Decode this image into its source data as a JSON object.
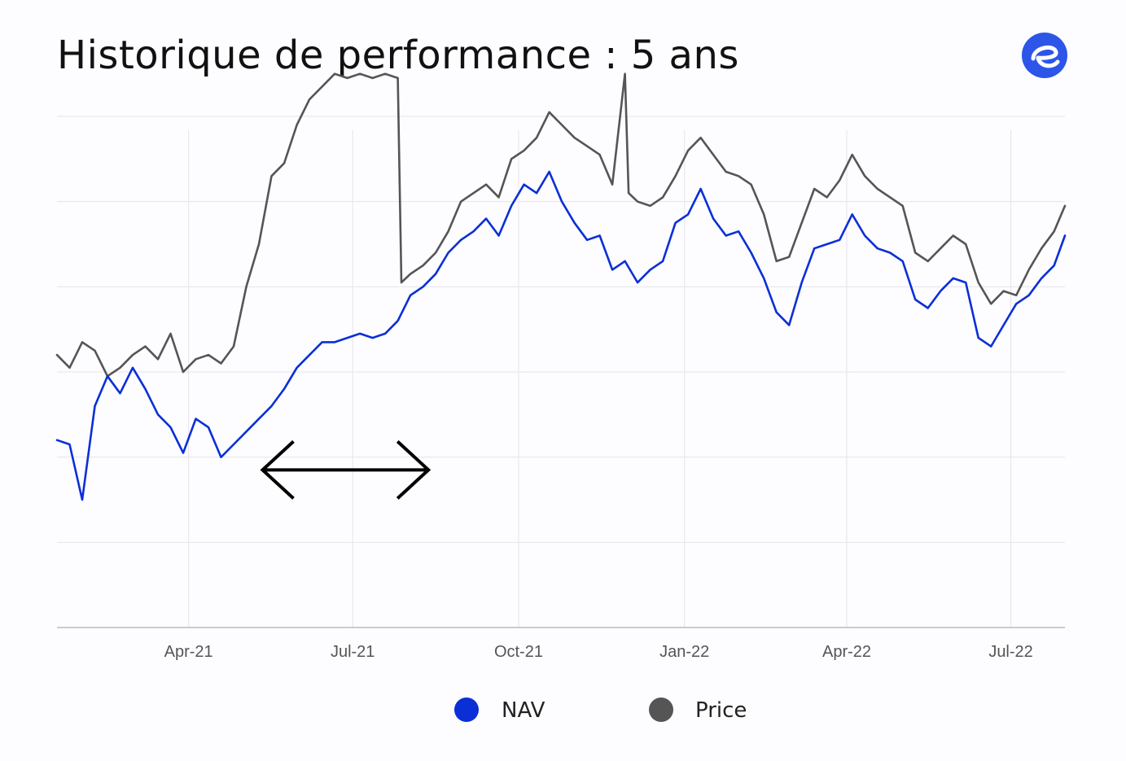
{
  "header": {
    "title": "Historique de performance : 5 ans",
    "logo_icon": "brand-e-logo",
    "logo_color": "#2d55e8"
  },
  "chart_data": {
    "type": "line",
    "x_tick_labels": [
      "Apr-21",
      "Jul-21",
      "Oct-21",
      "Jan-22",
      "Apr-22",
      "Jul-22"
    ],
    "x_range": [
      "2021-01-18",
      "2022-07-31"
    ],
    "y_range": [
      0,
      6
    ],
    "y_gridlines": [
      1,
      2,
      3,
      4,
      5,
      6
    ],
    "series": [
      {
        "name": "NAV",
        "color": "#0a2fd6",
        "points": [
          [
            "2021-01-18",
            2.2
          ],
          [
            "2021-01-25",
            2.15
          ],
          [
            "2021-02-01",
            1.5
          ],
          [
            "2021-02-08",
            2.6
          ],
          [
            "2021-02-15",
            2.95
          ],
          [
            "2021-02-22",
            2.75
          ],
          [
            "2021-03-01",
            3.05
          ],
          [
            "2021-03-08",
            2.8
          ],
          [
            "2021-03-15",
            2.5
          ],
          [
            "2021-03-22",
            2.35
          ],
          [
            "2021-03-29",
            2.05
          ],
          [
            "2021-04-05",
            2.45
          ],
          [
            "2021-04-12",
            2.35
          ],
          [
            "2021-04-19",
            2.0
          ],
          [
            "2021-04-26",
            2.15
          ],
          [
            "2021-05-03",
            2.3
          ],
          [
            "2021-05-10",
            2.45
          ],
          [
            "2021-05-17",
            2.6
          ],
          [
            "2021-05-24",
            2.8
          ],
          [
            "2021-05-31",
            3.05
          ],
          [
            "2021-06-07",
            3.2
          ],
          [
            "2021-06-14",
            3.35
          ],
          [
            "2021-06-21",
            3.35
          ],
          [
            "2021-06-28",
            3.4
          ],
          [
            "2021-07-05",
            3.45
          ],
          [
            "2021-07-12",
            3.4
          ],
          [
            "2021-07-19",
            3.45
          ],
          [
            "2021-07-26",
            3.6
          ],
          [
            "2021-08-02",
            3.9
          ],
          [
            "2021-08-09",
            4.0
          ],
          [
            "2021-08-16",
            4.15
          ],
          [
            "2021-08-23",
            4.4
          ],
          [
            "2021-08-30",
            4.55
          ],
          [
            "2021-09-06",
            4.65
          ],
          [
            "2021-09-13",
            4.8
          ],
          [
            "2021-09-20",
            4.6
          ],
          [
            "2021-09-27",
            4.95
          ],
          [
            "2021-10-04",
            5.2
          ],
          [
            "2021-10-11",
            5.1
          ],
          [
            "2021-10-18",
            5.35
          ],
          [
            "2021-10-25",
            5.0
          ],
          [
            "2021-11-01",
            4.75
          ],
          [
            "2021-11-08",
            4.55
          ],
          [
            "2021-11-15",
            4.6
          ],
          [
            "2021-11-22",
            4.2
          ],
          [
            "2021-11-29",
            4.3
          ],
          [
            "2021-12-06",
            4.05
          ],
          [
            "2021-12-13",
            4.2
          ],
          [
            "2021-12-20",
            4.3
          ],
          [
            "2021-12-27",
            4.75
          ],
          [
            "2022-01-03",
            4.85
          ],
          [
            "2022-01-10",
            5.15
          ],
          [
            "2022-01-17",
            4.8
          ],
          [
            "2022-01-24",
            4.6
          ],
          [
            "2022-01-31",
            4.65
          ],
          [
            "2022-02-07",
            4.4
          ],
          [
            "2022-02-14",
            4.1
          ],
          [
            "2022-02-21",
            3.7
          ],
          [
            "2022-02-28",
            3.55
          ],
          [
            "2022-03-07",
            4.05
          ],
          [
            "2022-03-14",
            4.45
          ],
          [
            "2022-03-21",
            4.5
          ],
          [
            "2022-03-28",
            4.55
          ],
          [
            "2022-04-04",
            4.85
          ],
          [
            "2022-04-11",
            4.6
          ],
          [
            "2022-04-18",
            4.45
          ],
          [
            "2022-04-25",
            4.4
          ],
          [
            "2022-05-02",
            4.3
          ],
          [
            "2022-05-09",
            3.85
          ],
          [
            "2022-05-16",
            3.75
          ],
          [
            "2022-05-23",
            3.95
          ],
          [
            "2022-05-30",
            4.1
          ],
          [
            "2022-06-06",
            4.05
          ],
          [
            "2022-06-13",
            3.4
          ],
          [
            "2022-06-20",
            3.3
          ],
          [
            "2022-06-27",
            3.55
          ],
          [
            "2022-07-04",
            3.8
          ],
          [
            "2022-07-11",
            3.9
          ],
          [
            "2022-07-18",
            4.1
          ],
          [
            "2022-07-25",
            4.25
          ],
          [
            "2022-07-31",
            4.6
          ]
        ]
      },
      {
        "name": "Price",
        "color": "#555555",
        "points": [
          [
            "2021-01-18",
            3.2
          ],
          [
            "2021-01-25",
            3.05
          ],
          [
            "2021-02-01",
            3.35
          ],
          [
            "2021-02-08",
            3.25
          ],
          [
            "2021-02-15",
            2.95
          ],
          [
            "2021-02-22",
            3.05
          ],
          [
            "2021-03-01",
            3.2
          ],
          [
            "2021-03-08",
            3.3
          ],
          [
            "2021-03-15",
            3.15
          ],
          [
            "2021-03-22",
            3.45
          ],
          [
            "2021-03-29",
            3.0
          ],
          [
            "2021-04-05",
            3.15
          ],
          [
            "2021-04-12",
            3.2
          ],
          [
            "2021-04-19",
            3.1
          ],
          [
            "2021-04-26",
            3.3
          ],
          [
            "2021-05-03",
            4.0
          ],
          [
            "2021-05-10",
            4.5
          ],
          [
            "2021-05-17",
            5.3
          ],
          [
            "2021-05-24",
            5.45
          ],
          [
            "2021-05-31",
            5.9
          ],
          [
            "2021-06-07",
            6.2
          ],
          [
            "2021-06-14",
            6.35
          ],
          [
            "2021-06-21",
            6.5
          ],
          [
            "2021-06-28",
            6.45
          ],
          [
            "2021-07-05",
            6.5
          ],
          [
            "2021-07-12",
            6.45
          ],
          [
            "2021-07-19",
            6.5
          ],
          [
            "2021-07-26",
            6.45
          ],
          [
            "2021-07-28",
            4.05
          ],
          [
            "2021-08-02",
            4.15
          ],
          [
            "2021-08-09",
            4.25
          ],
          [
            "2021-08-16",
            4.4
          ],
          [
            "2021-08-23",
            4.65
          ],
          [
            "2021-08-30",
            5.0
          ],
          [
            "2021-09-06",
            5.1
          ],
          [
            "2021-09-13",
            5.2
          ],
          [
            "2021-09-20",
            5.05
          ],
          [
            "2021-09-27",
            5.5
          ],
          [
            "2021-10-04",
            5.6
          ],
          [
            "2021-10-11",
            5.75
          ],
          [
            "2021-10-18",
            6.05
          ],
          [
            "2021-10-25",
            5.9
          ],
          [
            "2021-11-01",
            5.75
          ],
          [
            "2021-11-08",
            5.65
          ],
          [
            "2021-11-15",
            5.55
          ],
          [
            "2021-11-22",
            5.2
          ],
          [
            "2021-11-29",
            6.5
          ],
          [
            "2021-12-01",
            5.1
          ],
          [
            "2021-12-06",
            5.0
          ],
          [
            "2021-12-13",
            4.95
          ],
          [
            "2021-12-20",
            5.05
          ],
          [
            "2021-12-27",
            5.3
          ],
          [
            "2022-01-03",
            5.6
          ],
          [
            "2022-01-10",
            5.75
          ],
          [
            "2022-01-17",
            5.55
          ],
          [
            "2022-01-24",
            5.35
          ],
          [
            "2022-01-31",
            5.3
          ],
          [
            "2022-02-07",
            5.2
          ],
          [
            "2022-02-14",
            4.85
          ],
          [
            "2022-02-21",
            4.3
          ],
          [
            "2022-02-28",
            4.35
          ],
          [
            "2022-03-07",
            4.75
          ],
          [
            "2022-03-14",
            5.15
          ],
          [
            "2022-03-21",
            5.05
          ],
          [
            "2022-03-28",
            5.25
          ],
          [
            "2022-04-04",
            5.55
          ],
          [
            "2022-04-11",
            5.3
          ],
          [
            "2022-04-18",
            5.15
          ],
          [
            "2022-04-25",
            5.05
          ],
          [
            "2022-05-02",
            4.95
          ],
          [
            "2022-05-09",
            4.4
          ],
          [
            "2022-05-16",
            4.3
          ],
          [
            "2022-05-23",
            4.45
          ],
          [
            "2022-05-30",
            4.6
          ],
          [
            "2022-06-06",
            4.5
          ],
          [
            "2022-06-13",
            4.05
          ],
          [
            "2022-06-20",
            3.8
          ],
          [
            "2022-06-27",
            3.95
          ],
          [
            "2022-07-04",
            3.9
          ],
          [
            "2022-07-11",
            4.2
          ],
          [
            "2022-07-18",
            4.45
          ],
          [
            "2022-07-25",
            4.65
          ],
          [
            "2022-07-31",
            4.95
          ]
        ]
      }
    ],
    "annotation": {
      "type": "double-headed-arrow",
      "icon": "double-arrow-icon",
      "from": "2021-05-12",
      "to": "2021-08-12",
      "y": 1.85,
      "color": "#000000"
    },
    "grid": true,
    "legend_position": "bottom-center"
  }
}
